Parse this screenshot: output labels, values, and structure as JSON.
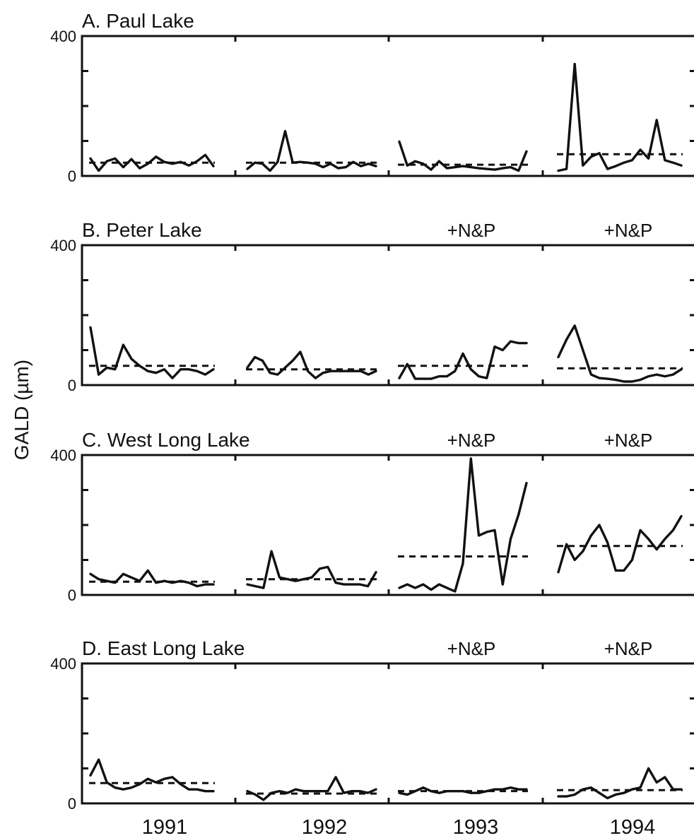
{
  "ylabel": "GALD (µm)",
  "years": [
    "1991",
    "1992",
    "1993",
    "1994"
  ],
  "chart_data": [
    {
      "type": "line",
      "title": "A.  Paul Lake",
      "ylim": [
        0,
        400
      ],
      "yticks": [
        "400",
        "0"
      ],
      "treatments": [
        "",
        "",
        "",
        ""
      ],
      "series": [
        {
          "year": "1991",
          "values": [
            50,
            15,
            42,
            50,
            25,
            48,
            22,
            35,
            55,
            40,
            35,
            40,
            30,
            42,
            60,
            28
          ],
          "mean": 38
        },
        {
          "year": "1992",
          "values": [
            20,
            38,
            35,
            15,
            40,
            128,
            38,
            40,
            38,
            35,
            25,
            35,
            22,
            25,
            40,
            28,
            35,
            28
          ],
          "mean": 38
        },
        {
          "year": "1993",
          "values": [
            98,
            30,
            42,
            35,
            18,
            42,
            22,
            25,
            28,
            25,
            22,
            20,
            18,
            22,
            25,
            15,
            70
          ],
          "mean": 32
        },
        {
          "year": "1994",
          "values": [
            15,
            20,
            320,
            30,
            55,
            65,
            20,
            28,
            38,
            45,
            75,
            50,
            160,
            45,
            38,
            30
          ],
          "mean": 62
        }
      ]
    },
    {
      "type": "line",
      "title": "B.  Peter Lake",
      "ylim": [
        0,
        400
      ],
      "yticks": [
        "400",
        "0"
      ],
      "treatments": [
        "",
        "",
        "+N&P",
        "+N&P"
      ],
      "series": [
        {
          "year": "1991",
          "values": [
            165,
            30,
            50,
            45,
            115,
            75,
            55,
            40,
            35,
            45,
            20,
            45,
            45,
            40,
            30,
            45
          ],
          "mean": 55
        },
        {
          "year": "1992",
          "values": [
            50,
            80,
            70,
            35,
            30,
            50,
            70,
            95,
            40,
            20,
            35,
            40,
            40,
            40,
            40,
            40,
            30,
            40
          ],
          "mean": 45
        },
        {
          "year": "1993",
          "values": [
            20,
            60,
            18,
            18,
            18,
            25,
            25,
            40,
            90,
            45,
            25,
            20,
            110,
            100,
            125,
            120,
            120
          ],
          "mean": 55
        },
        {
          "year": "1994",
          "values": [
            80,
            130,
            170,
            100,
            30,
            20,
            18,
            15,
            10,
            10,
            15,
            25,
            30,
            25,
            30,
            45
          ],
          "mean": 48
        }
      ]
    },
    {
      "type": "line",
      "title": "C.  West Long Lake",
      "ylim": [
        0,
        400
      ],
      "yticks": [
        "400",
        "0"
      ],
      "treatments": [
        "",
        "",
        "+N&P",
        "+N&P"
      ],
      "series": [
        {
          "year": "1991",
          "values": [
            60,
            45,
            40,
            35,
            60,
            50,
            40,
            70,
            35,
            40,
            35,
            40,
            35,
            25,
            30,
            30
          ],
          "mean": 38
        },
        {
          "year": "1992",
          "values": [
            30,
            25,
            20,
            125,
            50,
            45,
            40,
            45,
            50,
            75,
            80,
            35,
            30,
            30,
            30,
            25,
            65
          ],
          "mean": 45
        },
        {
          "year": "1993",
          "values": [
            20,
            30,
            20,
            30,
            15,
            30,
            20,
            10,
            90,
            390,
            170,
            180,
            185,
            30,
            160,
            230,
            320
          ],
          "mean": 110
        },
        {
          "year": "1994",
          "values": [
            65,
            145,
            100,
            125,
            170,
            200,
            150,
            70,
            70,
            100,
            185,
            160,
            130,
            160,
            185,
            225
          ],
          "mean": 140
        }
      ]
    },
    {
      "type": "line",
      "title": "D.  East Long Lake",
      "ylim": [
        0,
        400
      ],
      "yticks": [
        "400",
        "0"
      ],
      "treatments": [
        "",
        "",
        "+N&P",
        "+N&P"
      ],
      "series": [
        {
          "year": "1991",
          "values": [
            80,
            125,
            60,
            45,
            40,
            45,
            55,
            70,
            60,
            70,
            75,
            55,
            40,
            40,
            35,
            35
          ],
          "mean": 58
        },
        {
          "year": "1992",
          "values": [
            35,
            25,
            10,
            30,
            35,
            30,
            40,
            35,
            35,
            35,
            35,
            75,
            30,
            35,
            35,
            30,
            40
          ],
          "mean": 28
        },
        {
          "year": "1993",
          "values": [
            30,
            25,
            35,
            45,
            35,
            30,
            35,
            35,
            35,
            30,
            30,
            35,
            40,
            40,
            45,
            40,
            40
          ],
          "mean": 35
        },
        {
          "year": "1994",
          "values": [
            20,
            20,
            25,
            40,
            45,
            30,
            15,
            25,
            30,
            40,
            45,
            100,
            60,
            75,
            40,
            40
          ],
          "mean": 38
        }
      ]
    }
  ]
}
